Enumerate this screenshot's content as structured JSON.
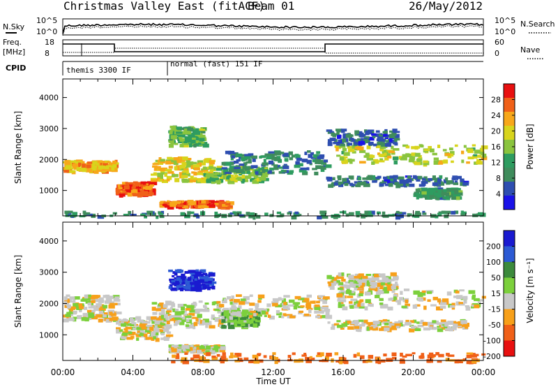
{
  "title": "Christmas Valley East (fitACF)",
  "beam": "Beam 01",
  "date": "26/May/2012",
  "labels": {
    "nsky": "N.Sky",
    "freq": "Freq.",
    "freq_unit": "[MHz]",
    "cpid": "CPID",
    "nsearch": "N.Search",
    "nave": "Nave",
    "xlabel": "Time UT"
  },
  "noise_axis": {
    "left_ticks": [
      "10^5",
      "10^0"
    ],
    "right_ticks": [
      "10^5",
      "10^0"
    ]
  },
  "freq_axis": {
    "left_ticks": [
      "18",
      "8"
    ],
    "right_ticks": [
      "60",
      "0"
    ]
  },
  "cpid_segments": [
    {
      "label": "themis 3300 IF",
      "start_h": 0.0,
      "end_h": 6.0
    },
    {
      "label": "normal (fast) 151 IF",
      "start_h": 6.0,
      "end_h": 24.0
    }
  ],
  "chart_data": [
    {
      "type": "heatmap",
      "name": "power",
      "ylabel": "Slant Range [km]",
      "xlabel": "",
      "xlim": [
        0,
        24
      ],
      "ylim": [
        180,
        4600
      ],
      "x_ticks": [
        "00:00",
        "04:00",
        "08:00",
        "12:00",
        "16:00",
        "20:00",
        "00:00"
      ],
      "y_ticks": [
        1000,
        2000,
        3000,
        4000
      ],
      "colorbar": {
        "label": "Power [dB]",
        "ticks": [
          4,
          8,
          12,
          16,
          20,
          24,
          28
        ],
        "range": [
          0,
          32
        ],
        "colors": [
          "#1a12e8",
          "#2e4eb0",
          "#3f8c5c",
          "#2e9c60",
          "#8ac43e",
          "#d8d41c",
          "#f7a71a",
          "#f06018",
          "#e81010"
        ]
      },
      "bands": [
        {
          "t": [
            0.0,
            3.0
          ],
          "r": [
            1650,
            2000
          ],
          "value": 22
        },
        {
          "t": [
            3.0,
            5.0
          ],
          "r": [
            900,
            1300
          ],
          "value": 27
        },
        {
          "t": [
            5.0,
            8.5
          ],
          "r": [
            1300,
            2100
          ],
          "value": 20
        },
        {
          "t": [
            5.5,
            9.5
          ],
          "r": [
            500,
            700
          ],
          "value": 26
        },
        {
          "t": [
            8.0,
            11.5
          ],
          "r": [
            1300,
            1800
          ],
          "value": 16
        },
        {
          "t": [
            9.0,
            15.0
          ],
          "r": [
            1600,
            2300
          ],
          "value": 9
        },
        {
          "t": [
            6.0,
            8.0
          ],
          "r": [
            2500,
            3100
          ],
          "value": 14
        },
        {
          "t": [
            15.5,
            24.0
          ],
          "r": [
            1900,
            2500
          ],
          "value": 18
        },
        {
          "t": [
            15.0,
            19.0
          ],
          "r": [
            2500,
            3000
          ],
          "value": 7
        },
        {
          "t": [
            15.0,
            23.0
          ],
          "r": [
            1200,
            1500
          ],
          "value": 7
        },
        {
          "t": [
            20.0,
            22.5
          ],
          "r": [
            800,
            1100
          ],
          "value": 11
        },
        {
          "t": [
            0.0,
            24.0
          ],
          "r": [
            180,
            350
          ],
          "value": 10
        }
      ]
    },
    {
      "type": "heatmap",
      "name": "velocity",
      "ylabel": "Slant Range [km]",
      "xlabel": "Time UT",
      "xlim": [
        0,
        24
      ],
      "ylim": [
        180,
        4600
      ],
      "x_ticks": [
        "00:00",
        "04:00",
        "08:00",
        "12:00",
        "16:00",
        "20:00",
        "00:00"
      ],
      "y_ticks": [
        1000,
        2000,
        3000,
        4000
      ],
      "colorbar": {
        "label": "Velocity [m s⁻¹]",
        "ticks": [
          200,
          100,
          50,
          15,
          -15,
          -50,
          -100,
          -200
        ],
        "range": [
          -250,
          250
        ],
        "colors": [
          "#1a1ad0",
          "#2c5ad4",
          "#3c8a3c",
          "#7cd03c",
          "#c8c8c8",
          "#f7a01a",
          "#f06018",
          "#e81010"
        ]
      },
      "bands": [
        {
          "t": [
            0.0,
            3.0
          ],
          "r": [
            1500,
            2300
          ],
          "value": 0
        },
        {
          "t": [
            3.0,
            6.0
          ],
          "r": [
            900,
            1600
          ],
          "value": 0
        },
        {
          "t": [
            5.0,
            9.0
          ],
          "r": [
            1300,
            2100
          ],
          "value": 0
        },
        {
          "t": [
            6.0,
            9.0
          ],
          "r": [
            500,
            700
          ],
          "value": 0
        },
        {
          "t": [
            6.0,
            8.5
          ],
          "r": [
            2500,
            3100
          ],
          "value": 150
        },
        {
          "t": [
            9.0,
            11.0
          ],
          "r": [
            1300,
            1800
          ],
          "value": 40
        },
        {
          "t": [
            9.0,
            15.0
          ],
          "r": [
            1600,
            2300
          ],
          "value": 0
        },
        {
          "t": [
            15.5,
            24.0
          ],
          "r": [
            1900,
            2500
          ],
          "value": 0
        },
        {
          "t": [
            15.0,
            19.0
          ],
          "r": [
            2500,
            3000
          ],
          "value": 0
        },
        {
          "t": [
            15.0,
            23.0
          ],
          "r": [
            1200,
            1500
          ],
          "value": 0
        },
        {
          "t": [
            6.0,
            24.0
          ],
          "r": [
            180,
            450
          ],
          "value": -60
        }
      ]
    }
  ]
}
